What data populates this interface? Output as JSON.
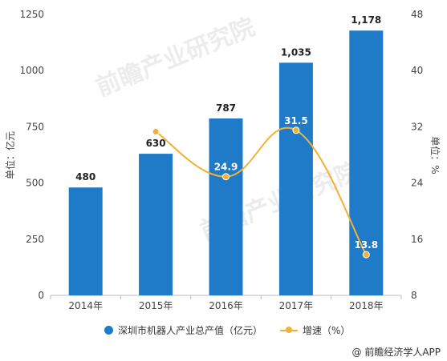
{
  "chart_data": {
    "type": "bar",
    "categories": [
      "2014年",
      "2015年",
      "2016年",
      "2017年",
      "2018年"
    ],
    "series": [
      {
        "name": "深圳市机器人产业总产值（亿元）",
        "type": "bar",
        "axis": "left",
        "values": [
          480,
          630,
          787,
          1035,
          1178
        ],
        "labels": [
          "480",
          "630",
          "787",
          "1,035",
          "1,178"
        ]
      },
      {
        "name": "增速（%）",
        "type": "line",
        "axis": "right",
        "values": [
          null,
          31.3,
          24.9,
          31.5,
          13.8
        ],
        "labels": [
          "",
          "31.3",
          "24.9",
          "31.5",
          "13.8"
        ]
      }
    ],
    "ylabel_left": "单位：亿元",
    "ylabel_right": "单位：%",
    "ylim_left": [
      0,
      1250
    ],
    "yticks_left": [
      "0",
      "250",
      "500",
      "750",
      "1000",
      "1250"
    ],
    "ylim_right": [
      8,
      48
    ],
    "yticks_right": [
      "8",
      "16",
      "24",
      "32",
      "40",
      "48"
    ],
    "legend_position": "bottom",
    "grid": false
  },
  "colors": {
    "bar": "#1f7ac8",
    "line": "#f2b134"
  },
  "watermark": "前瞻产业研究院",
  "source": "@ 前瞻经济学人APP"
}
